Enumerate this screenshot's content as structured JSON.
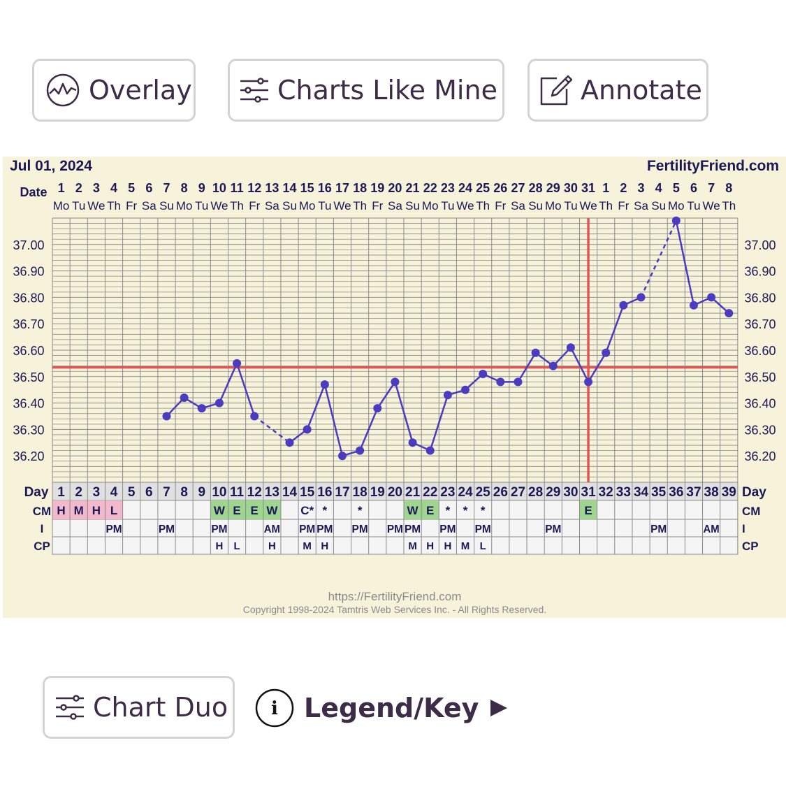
{
  "toolbar": {
    "overlay_label": "Overlay",
    "charts_like_mine_label": "Charts Like Mine",
    "annotate_label": "Annotate"
  },
  "footer": {
    "chart_duo_label": "Chart Duo",
    "legend_label": "Legend/Key",
    "info_glyph": "i"
  },
  "colors": {
    "line": "#4a3bbf",
    "coverline": "#e05555",
    "ovulation_line": "#e05555",
    "panel_bg": "#f7f2da",
    "grid": "#8a8a8a",
    "cm_pink": "#f2b8cb",
    "cm_green": "#9ed58f",
    "label_navy": "#1c1856"
  },
  "chart_data": {
    "type": "line",
    "start_date": "Jul 01, 2024",
    "site": "FertilityFriend.com",
    "row_labels": {
      "date": "Date",
      "day": "Day",
      "cm": "CM",
      "i": "I",
      "cp": "CP"
    },
    "dates": [
      "1",
      "2",
      "3",
      "4",
      "5",
      "6",
      "7",
      "8",
      "9",
      "10",
      "11",
      "12",
      "13",
      "14",
      "15",
      "16",
      "17",
      "18",
      "19",
      "20",
      "21",
      "22",
      "23",
      "24",
      "25",
      "26",
      "27",
      "28",
      "29",
      "30",
      "31",
      "1",
      "2",
      "3",
      "4",
      "5",
      "6",
      "7",
      "8"
    ],
    "weekdays": [
      "Mo",
      "Tu",
      "We",
      "Th",
      "Fr",
      "Sa",
      "Su",
      "Mo",
      "Tu",
      "We",
      "Th",
      "Fr",
      "Sa",
      "Su",
      "Mo",
      "Tu",
      "We",
      "Th",
      "Fr",
      "Sa",
      "Su",
      "Mo",
      "Tu",
      "We",
      "Th",
      "Fr",
      "Sa",
      "Su",
      "Mo",
      "Tu",
      "We",
      "Th",
      "Fr",
      "Sa",
      "Su",
      "Mo",
      "Tu",
      "We",
      "Th"
    ],
    "days": [
      1,
      2,
      3,
      4,
      5,
      6,
      7,
      8,
      9,
      10,
      11,
      12,
      13,
      14,
      15,
      16,
      17,
      18,
      19,
      20,
      21,
      22,
      23,
      24,
      25,
      26,
      27,
      28,
      29,
      30,
      31,
      32,
      33,
      34,
      35,
      36,
      37,
      38,
      39
    ],
    "temperatures": [
      null,
      null,
      null,
      null,
      null,
      null,
      36.35,
      36.42,
      36.38,
      36.4,
      36.55,
      36.35,
      null,
      36.25,
      36.3,
      36.47,
      36.2,
      36.22,
      36.38,
      36.48,
      36.25,
      36.22,
      36.43,
      36.45,
      36.51,
      36.48,
      36.48,
      36.59,
      36.54,
      36.61,
      36.48,
      36.59,
      36.77,
      36.8,
      null,
      37.09,
      36.77,
      36.8,
      36.74
    ],
    "y_ticks": [
      "37.00",
      "36.90",
      "36.80",
      "36.70",
      "36.60",
      "36.50",
      "36.40",
      "36.30",
      "36.20"
    ],
    "ylim": [
      36.1,
      37.1
    ],
    "coverline": 36.535,
    "ovulation_day": 31,
    "cm": [
      "H",
      "M",
      "H",
      "L",
      "",
      "",
      "",
      "",
      "",
      "W",
      "E",
      "E",
      "W",
      "",
      "C*",
      "*",
      "",
      "*",
      "",
      "",
      "W",
      "E",
      "*",
      "*",
      "*",
      "",
      "",
      "",
      "",
      "",
      "E",
      "",
      "",
      "",
      "",
      "",
      "",
      "",
      ""
    ],
    "cm_colors": [
      "pink",
      "pink",
      "pink",
      "pink",
      "",
      "",
      "",
      "",
      "",
      "green",
      "green",
      "green",
      "green",
      "",
      "",
      "",
      "",
      "",
      "",
      "",
      "green",
      "green",
      "",
      "",
      "",
      "",
      "",
      "",
      "",
      "",
      "green",
      "",
      "",
      "",
      "",
      "",
      "",
      "",
      ""
    ],
    "intercourse": [
      "",
      "",
      "",
      "PM",
      "",
      "",
      "PM",
      "",
      "",
      "PM",
      "",
      "",
      "AM",
      "",
      "PM",
      "PM",
      "",
      "PM",
      "",
      "PM",
      "PM",
      "",
      "PM",
      "",
      "PM",
      "",
      "",
      "",
      "PM",
      "",
      "",
      "",
      "",
      "",
      "PM",
      "",
      "",
      "AM",
      ""
    ],
    "cervical_position": [
      "",
      "",
      "",
      "",
      "",
      "",
      "",
      "",
      "",
      "H",
      "L",
      "",
      "H",
      "",
      "M",
      "H",
      "",
      "",
      "",
      "",
      "M",
      "H",
      "H",
      "M",
      "L",
      "",
      "",
      "",
      "",
      "",
      "",
      "",
      "",
      "",
      "",
      "",
      "",
      "",
      ""
    ]
  },
  "copyright": {
    "url": "https://FertilityFriend.com",
    "notice": "Copyright 1998-2024 Tamtris Web Services Inc. - All Rights Reserved."
  }
}
